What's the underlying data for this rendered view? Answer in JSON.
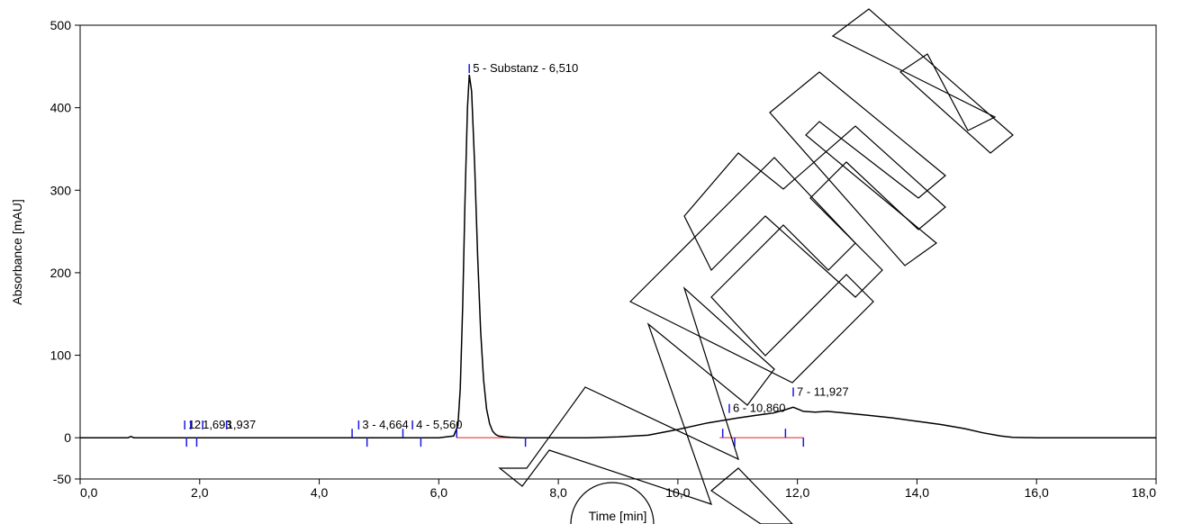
{
  "chart_data": {
    "type": "line",
    "title": "",
    "xlabel": "Time [min]",
    "ylabel": "Absorbance [mAU]",
    "xlim": [
      0,
      18
    ],
    "ylim": [
      -50,
      500
    ],
    "x_ticks": [
      "0,0",
      "2,0",
      "4,0",
      "6,0",
      "8,0",
      "10,0",
      "12,0",
      "14,0",
      "16,0",
      "18,0"
    ],
    "y_ticks": [
      "-50",
      "0",
      "100",
      "200",
      "300",
      "400",
      "500"
    ],
    "series": [
      {
        "x": [
          0.0,
          0.8,
          0.85,
          0.9,
          1.2,
          1.6,
          2.0,
          3.0,
          4.0,
          5.0,
          5.5,
          6.0,
          6.25,
          6.32,
          6.36,
          6.4,
          6.44,
          6.48,
          6.51,
          6.55,
          6.6,
          6.65,
          6.7,
          6.75,
          6.8,
          6.85,
          6.9,
          6.95,
          7.0,
          7.1,
          7.2,
          7.4,
          7.6,
          8.0,
          8.5,
          9.0,
          9.5,
          10.0,
          10.5,
          11.0,
          11.3,
          11.6,
          11.8,
          11.93,
          12.1,
          12.3,
          12.5,
          12.8,
          13.2,
          13.6,
          14.0,
          14.4,
          14.8,
          15.1,
          15.4,
          15.6,
          16.0,
          17.0,
          18.0
        ],
        "y": [
          0,
          0,
          1.5,
          0,
          0,
          0,
          0,
          0,
          0,
          0,
          0,
          0,
          2,
          15,
          60,
          160,
          290,
          400,
          440,
          420,
          330,
          220,
          130,
          70,
          35,
          17,
          8,
          4,
          2,
          1,
          0.5,
          0,
          0,
          0,
          0,
          1,
          3,
          10,
          18,
          24,
          27,
          30,
          34,
          37,
          32,
          31,
          32,
          30,
          27,
          24,
          20,
          16,
          11,
          6,
          2,
          0.5,
          0,
          0,
          0
        ]
      }
    ],
    "peaks": [
      {
        "label": "1",
        "x": 1.75
      },
      {
        "label": "2",
        "x": 1.85
      },
      {
        "label": "1,693",
        "x": 2.05
      },
      {
        "label": "1,937",
        "x": 2.5
      },
      {
        "label": "3 - 4,664",
        "x": 4.66
      },
      {
        "label": "4 - 5,560",
        "x": 5.56
      },
      {
        "label": "5 - Substanz - 6,510",
        "x": 6.51
      },
      {
        "label": "6 - 10,860",
        "x": 10.86
      },
      {
        "label": "7 - 11,927",
        "x": 11.93
      }
    ],
    "grid": false,
    "legend": "none"
  },
  "watermark": "MUSTER"
}
